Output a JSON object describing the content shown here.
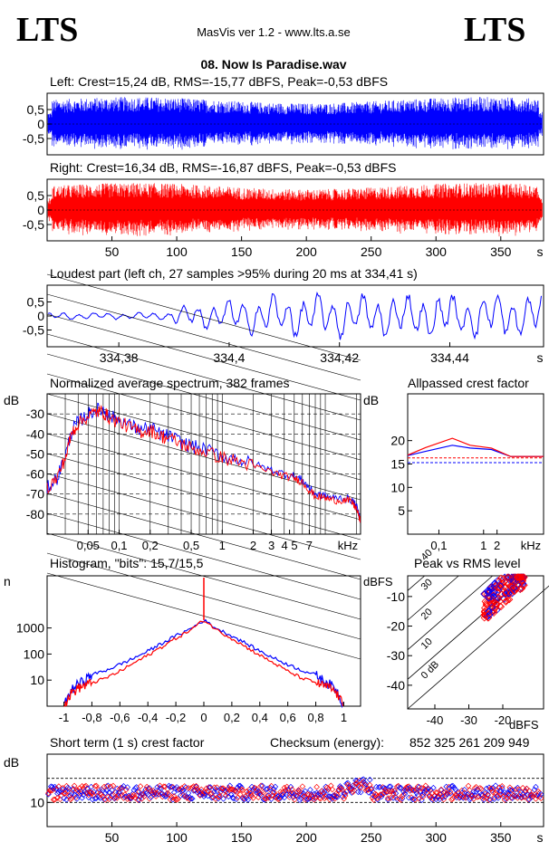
{
  "header": {
    "logo_left": "LTS",
    "logo_right": "LTS",
    "app_title": "MasVis ver 1.2 - www.lts.a.se",
    "file_title": "08. Now Is Paradise.wav"
  },
  "colors": {
    "left": "#0000ff",
    "right": "#ff0000",
    "grid": "#000000"
  },
  "chart_data": [
    {
      "id": "left-wave",
      "type": "line",
      "title": "Left: Crest=15,24 dB, RMS=-15,77 dBFS, Peak=-0,53 dBFS",
      "yticks": [
        "0,5",
        "0",
        "-0,5"
      ],
      "ylim": [
        -1,
        1
      ],
      "series": [
        {
          "values": []
        }
      ]
    },
    {
      "id": "right-wave",
      "type": "line",
      "title": "Right: Crest=16,34 dB, RMS=-16,87 dBFS, Peak=-0,53 dBFS",
      "yticks": [
        "0,5",
        "0",
        "-0,5"
      ],
      "xticks": [
        "50",
        "100",
        "150",
        "200",
        "250",
        "300",
        "350",
        "s"
      ],
      "xlim": [
        0,
        383
      ],
      "ylim": [
        -1,
        1
      ]
    },
    {
      "id": "loudest-part",
      "type": "line",
      "title": "Loudest part (left  ch, 27 samples >95% during 20 ms at 334,41 s)",
      "yticks": [
        "0,5",
        "0",
        "-0,5"
      ],
      "xticks": [
        "334,38",
        "334,4",
        "334,42",
        "334,44",
        "s"
      ],
      "xlim": [
        334.367,
        334.457
      ],
      "ylim": [
        -1,
        1
      ]
    },
    {
      "id": "spectrum",
      "type": "line",
      "title": "Normalized average spectrum, 382 frames",
      "ylabel": "dB",
      "yticks": [
        "-30",
        "-40",
        "-50",
        "-60",
        "-70",
        "-80"
      ],
      "xticks": [
        "0,05",
        "0,1",
        "0,2",
        "0,5",
        "1",
        "2",
        "3",
        "4 5",
        "7",
        "kHz"
      ],
      "xlim": [
        0.02,
        22
      ],
      "ylim": [
        -90,
        -20
      ],
      "x": [
        0.02,
        0.025,
        0.03,
        0.035,
        0.04,
        0.05,
        0.06,
        0.07,
        0.08,
        0.1,
        0.13,
        0.16,
        0.2,
        0.25,
        0.3,
        0.4,
        0.5,
        0.7,
        1,
        1.5,
        2,
        3,
        4,
        5,
        6,
        7,
        8,
        10,
        12,
        15,
        18,
        20,
        22
      ],
      "series": [
        {
          "values": [
            -67,
            -62,
            -51,
            -38,
            -34,
            -30,
            -28,
            -28,
            -31,
            -33,
            -36,
            -38,
            -37,
            -40,
            -41,
            -44,
            -46,
            -48,
            -51,
            -53,
            -55,
            -58,
            -60,
            -61,
            -63,
            -67,
            -70,
            -71,
            -72,
            -72,
            -73,
            -76,
            -83
          ]
        },
        {
          "values": [
            -67,
            -62,
            -52,
            -39,
            -35,
            -31,
            -29,
            -29,
            -32,
            -34,
            -37,
            -39,
            -38,
            -41,
            -42,
            -45,
            -47,
            -49,
            -52,
            -54,
            -56,
            -59,
            -61,
            -62,
            -64,
            -68,
            -71,
            -72,
            -73,
            -73,
            -74,
            -77,
            -84
          ]
        }
      ]
    },
    {
      "id": "allpassed-crest",
      "type": "line",
      "title": "Allpassed crest factor",
      "ylabel": "dB",
      "yticks": [
        "20",
        "15",
        "10",
        "5"
      ],
      "xticks": [
        "0,1",
        "1",
        "2",
        "kHz"
      ],
      "xlim": [
        0.02,
        22
      ],
      "ylim": [
        0,
        30
      ],
      "x": [
        0.02,
        0.05,
        0.2,
        0.5,
        1.5,
        4,
        22
      ],
      "series": [
        {
          "values": [
            16.8,
            17.7,
            19.0,
            18.4,
            18.1,
            16.6,
            16.6
          ]
        },
        {
          "values": [
            16.9,
            18.5,
            20.5,
            19.0,
            18.4,
            16.6,
            16.6
          ]
        }
      ],
      "reference_lines": [
        16.3,
        15.3
      ]
    },
    {
      "id": "histogram",
      "type": "line",
      "title": "Histogram, \"bits\": 15,7/15,5",
      "ylabel": "n",
      "yticks": [
        "1000",
        "100",
        "10"
      ],
      "xticks": [
        "-1",
        "-0,8",
        "-0,6",
        "-0,4",
        "-0,2",
        "0",
        "0,2",
        "0,4",
        "0,6",
        "0,8",
        "1"
      ],
      "xlim": [
        -1.12,
        1.12
      ],
      "ylim": [
        1,
        100000
      ],
      "x": [
        -1.0,
        -0.95,
        -0.9,
        -0.85,
        -0.8,
        -0.7,
        -0.6,
        -0.5,
        -0.4,
        -0.3,
        -0.2,
        -0.1,
        0,
        0.1,
        0.2,
        0.3,
        0.4,
        0.5,
        0.6,
        0.7,
        0.8,
        0.85,
        0.9,
        0.95,
        1.0
      ],
      "series": [
        {
          "values": [
            1,
            4,
            7,
            10,
            16,
            24,
            40,
            70,
            130,
            260,
            500,
            900,
            2000,
            900,
            500,
            260,
            130,
            70,
            40,
            24,
            16,
            10,
            7,
            4,
            1
          ]
        },
        {
          "values": [
            1,
            3,
            5,
            6,
            8,
            12,
            22,
            45,
            90,
            190,
            400,
            800,
            2000,
            800,
            400,
            190,
            90,
            45,
            22,
            12,
            8,
            6,
            5,
            3,
            1
          ]
        }
      ]
    },
    {
      "id": "peak-vs-rms",
      "type": "scatter",
      "title": "Peak vs RMS level",
      "ylabel": "dBFS",
      "xlabel": "dBFS",
      "yticks": [
        "-10",
        "-20",
        "-30",
        "-40"
      ],
      "xticks": [
        "-40",
        "-30",
        "-20"
      ],
      "xlim": [
        -48,
        -8
      ],
      "ylim": [
        -48,
        -3
      ],
      "diagonal_labels": [
        "40",
        "30",
        "20",
        "10",
        "0 dB"
      ]
    },
    {
      "id": "short-term-crest",
      "type": "scatter",
      "title": "Short term (1 s) crest factor",
      "checksum_label": "Checksum (energy):",
      "checksum_value": "852 325 261 209 949",
      "ylabel": "dB",
      "yticks": [
        "10"
      ],
      "xticks": [
        "50",
        "100",
        "150",
        "200",
        "250",
        "300",
        "350",
        "s"
      ],
      "xlim": [
        0,
        383
      ],
      "ylim": [
        0,
        30
      ]
    }
  ]
}
